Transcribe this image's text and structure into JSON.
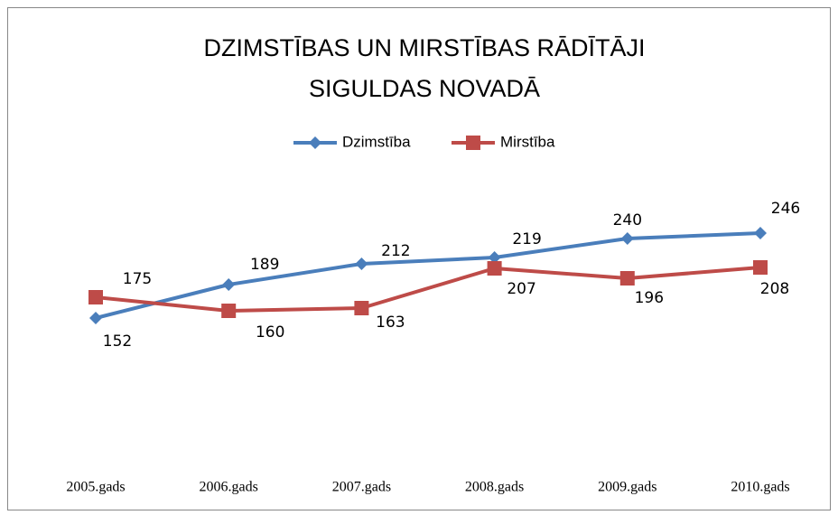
{
  "chart_data": {
    "type": "line",
    "title": [
      "DZIMSTĪBAS UN MIRSTĪBAS RĀDĪTĀJI",
      "SIGULDAS NOVADĀ"
    ],
    "categories": [
      "2005.gads",
      "2006.gads",
      "2007.gads",
      "2008.gads",
      "2009.gads",
      "2010.gads"
    ],
    "series": [
      {
        "name": "Dzimstība",
        "color": "#4a7ebb",
        "values": [
          152,
          189,
          212,
          219,
          240,
          246
        ]
      },
      {
        "name": "Mirstība",
        "color": "#be4b48",
        "values": [
          175,
          160,
          163,
          207,
          196,
          208
        ]
      }
    ]
  }
}
